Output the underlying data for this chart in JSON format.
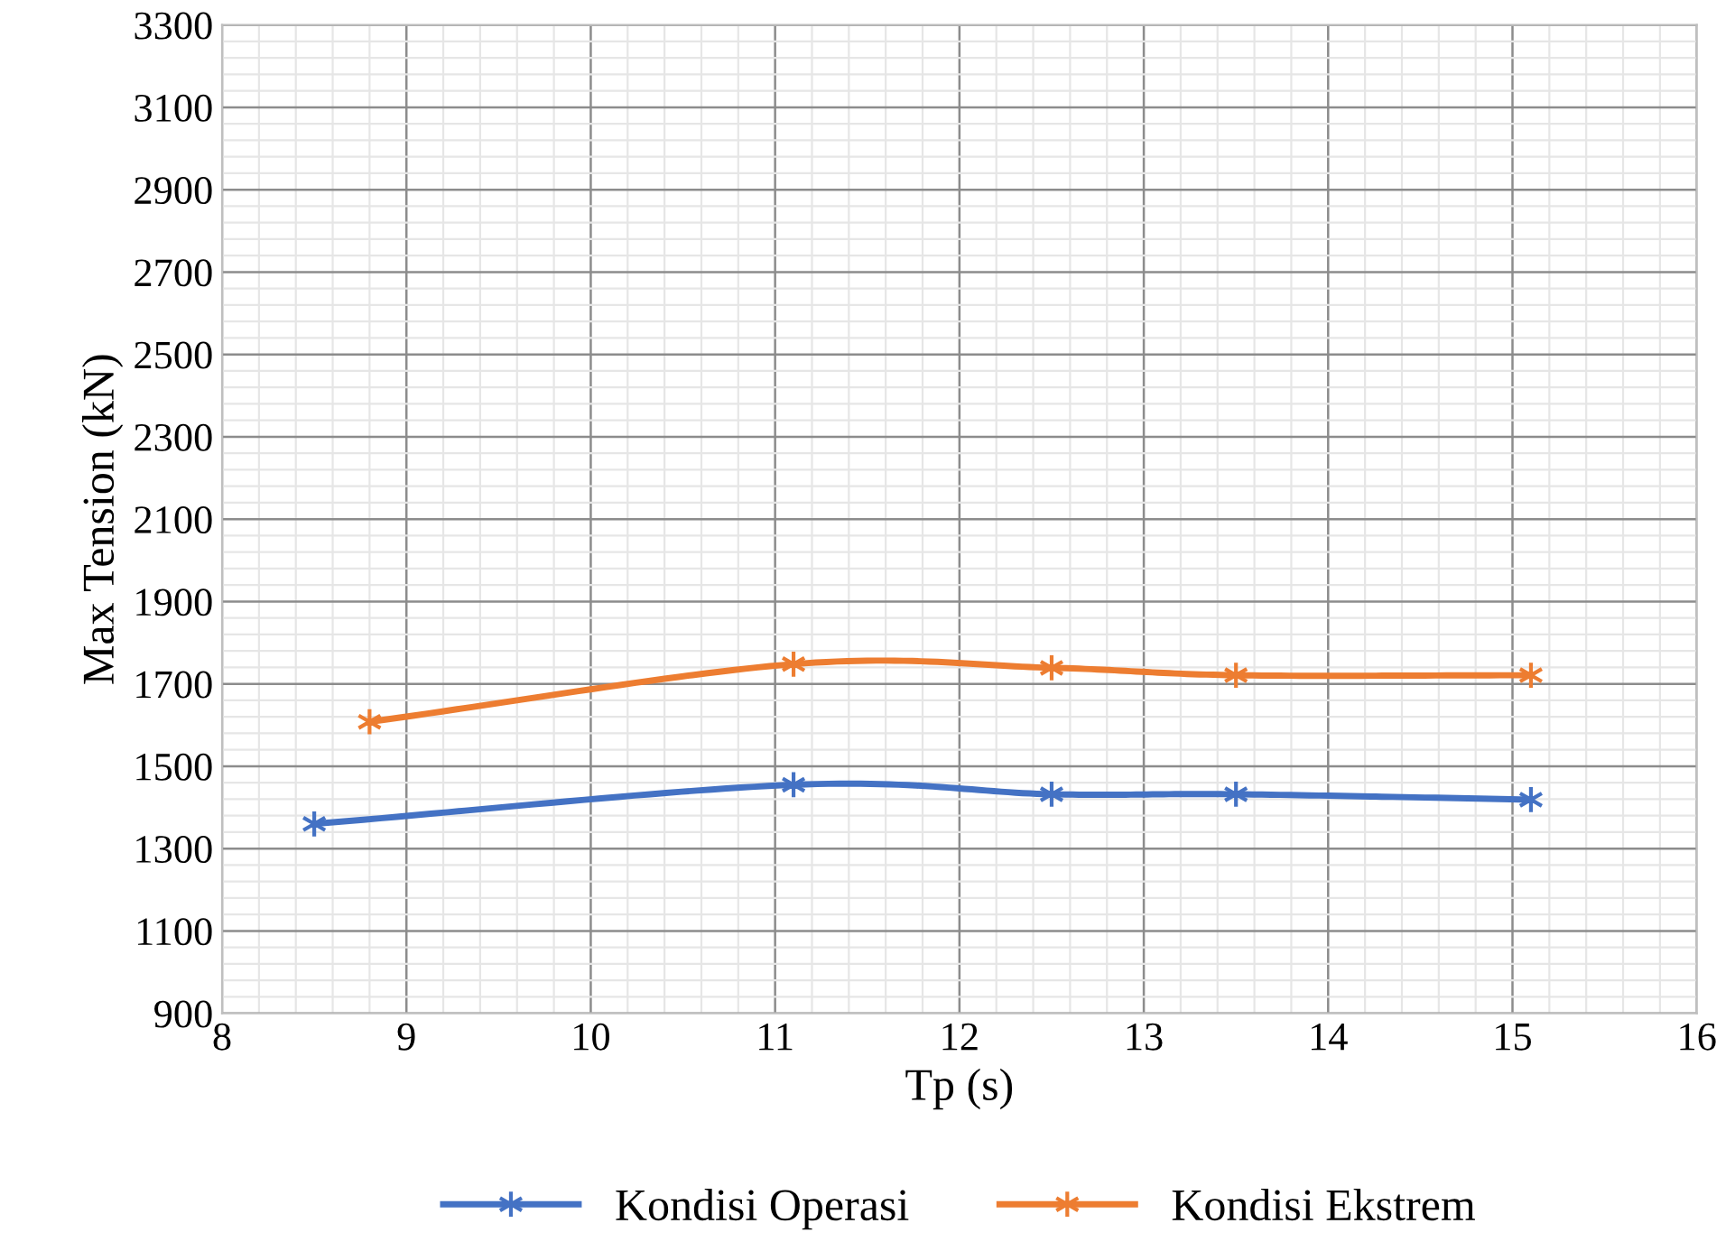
{
  "chart_data": {
    "type": "line",
    "xlabel": "Tp (s)",
    "ylabel": "Max Tension (kN)",
    "xlim": [
      8,
      16
    ],
    "xticks": [
      8,
      9,
      10,
      11,
      12,
      13,
      14,
      15,
      16
    ],
    "ylim": [
      900,
      3300
    ],
    "yticks": [
      900,
      1100,
      1300,
      1500,
      1700,
      1900,
      2100,
      2300,
      2500,
      2700,
      2900,
      3100,
      3300
    ],
    "grid": true,
    "legend": "bottom",
    "marker": "cross",
    "line_style": "solid",
    "series": [
      {
        "name": "Kondisi Operasi",
        "color": "#4472c4",
        "x": [
          8.5,
          11.1,
          12.5,
          13.5,
          15.1
        ],
        "values": [
          1360,
          1455,
          1432,
          1432,
          1419
        ]
      },
      {
        "name": "Kondisi Ekstrem",
        "color": "#ed7d31",
        "x": [
          8.8,
          11.1,
          12.5,
          13.5,
          15.1
        ],
        "values": [
          1608,
          1748,
          1739,
          1721,
          1721
        ]
      }
    ]
  }
}
